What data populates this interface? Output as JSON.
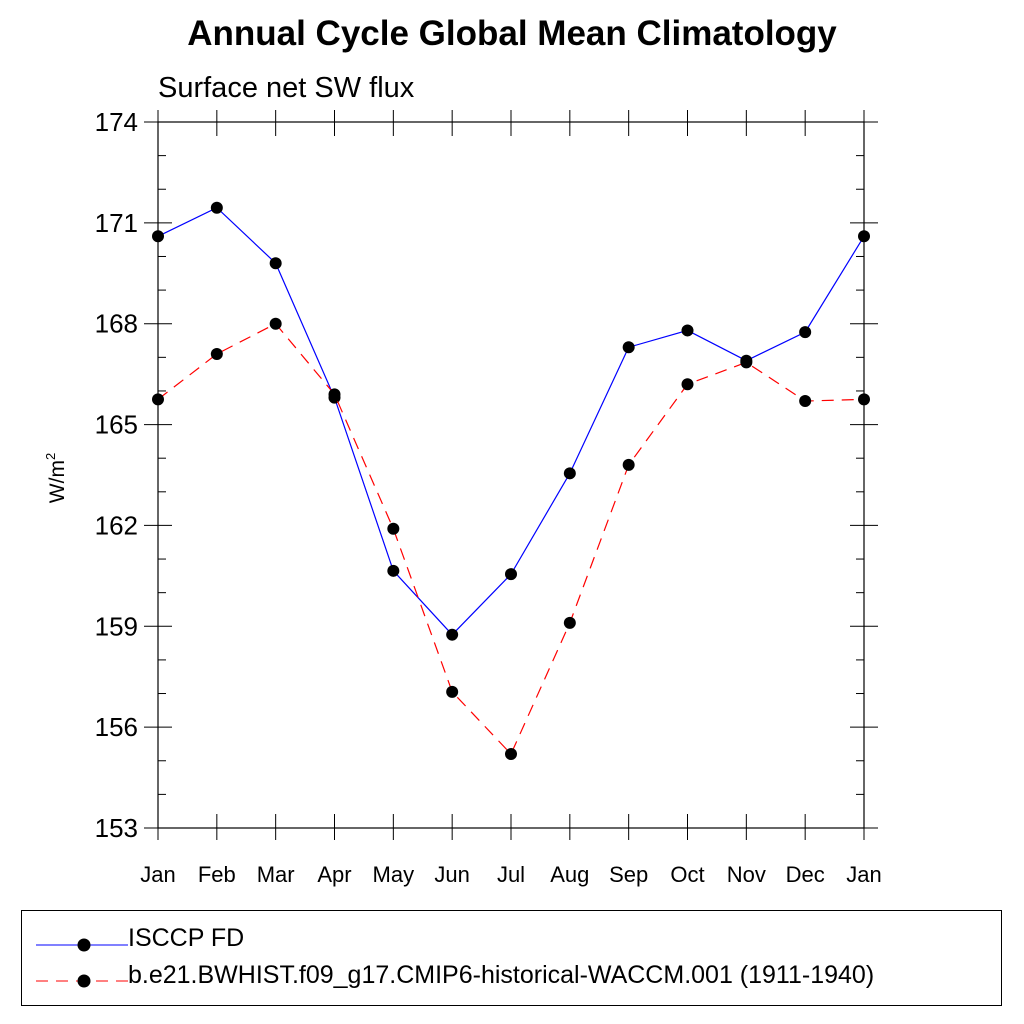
{
  "chart_data": {
    "type": "line",
    "title": "Annual Cycle Global Mean Climatology",
    "subtitle": "Surface net SW flux",
    "ylabel": "W/m",
    "ylabel_superscript": "2",
    "xlabel": "",
    "categories": [
      "Jan",
      "Feb",
      "Mar",
      "Apr",
      "May",
      "Jun",
      "Jul",
      "Aug",
      "Sep",
      "Oct",
      "Nov",
      "Dec",
      "Jan"
    ],
    "ylim": [
      153,
      174
    ],
    "yticks": [
      153,
      156,
      159,
      162,
      165,
      168,
      171,
      174
    ],
    "grid": false,
    "legend_position": "bottom",
    "series": [
      {
        "name": "ISCCP FD",
        "color": "#0000ff",
        "line_style": "solid",
        "marker": "circle",
        "values": [
          170.6,
          171.45,
          169.8,
          165.8,
          160.65,
          158.75,
          160.55,
          163.55,
          167.3,
          167.8,
          166.9,
          167.75,
          170.6
        ]
      },
      {
        "name": "b.e21.BWHIST.f09_g17.CMIP6-historical-WACCM.001 (1911-1940)",
        "color": "#ff0000",
        "line_style": "dashed",
        "marker": "circle",
        "values": [
          165.75,
          167.1,
          168.0,
          165.9,
          161.9,
          157.05,
          155.2,
          159.1,
          163.8,
          166.2,
          166.85,
          165.7,
          165.75
        ]
      }
    ]
  }
}
